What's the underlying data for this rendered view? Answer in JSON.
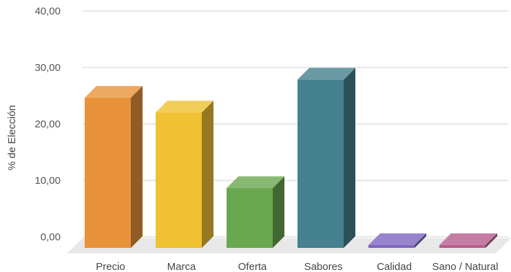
{
  "chart_data": {
    "type": "bar",
    "style": "3d",
    "title": "",
    "xlabel": "",
    "ylabel": "% de Elección",
    "ylim": [
      0,
      40
    ],
    "yticks": [
      0,
      10,
      20,
      30,
      40
    ],
    "ytick_labels": [
      "0,00",
      "10,00",
      "20,00",
      "30,00",
      "40,00"
    ],
    "grid": true,
    "legend": "none",
    "categories": [
      "Precio",
      "Marca",
      "Oferta",
      "Sabores",
      "Calidad",
      "Sano / Natural"
    ],
    "values": [
      26.6,
      24.0,
      10.6,
      29.8,
      0.5,
      0.5
    ],
    "colors": [
      "#E8923A",
      "#F0C132",
      "#6AA84F",
      "#45818E",
      "#7E65C0",
      "#B85C8C"
    ]
  }
}
